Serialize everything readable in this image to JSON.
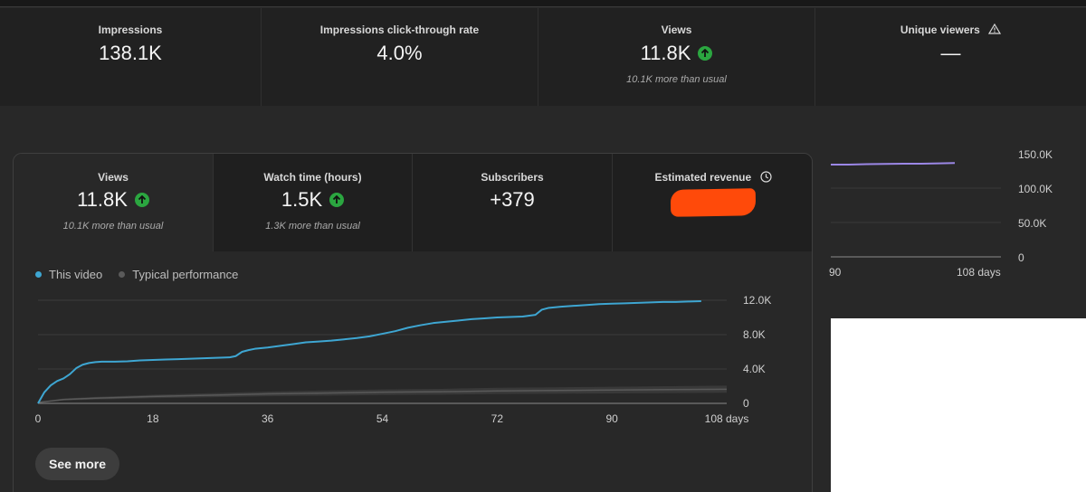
{
  "top_metrics": [
    {
      "label": "Impressions",
      "value": "138.1K"
    },
    {
      "label": "Impressions click-through rate",
      "value": "4.0%"
    },
    {
      "label": "Views",
      "value": "11.8K",
      "trend": "up",
      "sub": "10.1K more than usual"
    },
    {
      "label": "Unique viewers",
      "value": "—",
      "icon": "warning-icon"
    }
  ],
  "background_chart": {
    "y_ticks": [
      "150.0K",
      "100.0K",
      "50.0K",
      "0"
    ],
    "x_ticks": [
      "90",
      "108 days"
    ]
  },
  "card": {
    "tabs": [
      {
        "label": "Views",
        "value": "11.8K",
        "trend": "up",
        "sub": "10.1K more than usual",
        "active": true
      },
      {
        "label": "Watch time (hours)",
        "value": "1.5K",
        "trend": "up",
        "sub": "1.3K more than usual"
      },
      {
        "label": "Subscribers",
        "value": "+379"
      },
      {
        "label": "Estimated revenue",
        "value": "",
        "icon": "clock-icon",
        "redacted": true
      }
    ],
    "legend": [
      {
        "label": "This video",
        "color": "#3ea6d2"
      },
      {
        "label": "Typical performance",
        "color": "#5a5a5a"
      }
    ],
    "see_more_label": "See more"
  },
  "chart_data": {
    "type": "line",
    "x_ticks": [
      "0",
      "18",
      "36",
      "54",
      "72",
      "90",
      "108 days"
    ],
    "y_ticks": [
      "12.0K",
      "8.0K",
      "4.0K",
      "0"
    ],
    "xlim": [
      0,
      108
    ],
    "ylim": [
      0,
      12000
    ],
    "series": [
      {
        "name": "This video",
        "color": "#3ea6d2",
        "points": [
          [
            0,
            0
          ],
          [
            1,
            1300
          ],
          [
            2,
            2100
          ],
          [
            3,
            2600
          ],
          [
            4,
            2900
          ],
          [
            5,
            3400
          ],
          [
            6,
            4100
          ],
          [
            7,
            4500
          ],
          [
            8,
            4700
          ],
          [
            9,
            4800
          ],
          [
            10,
            4850
          ],
          [
            12,
            4850
          ],
          [
            14,
            4900
          ],
          [
            16,
            5000
          ],
          [
            18,
            5050
          ],
          [
            20,
            5100
          ],
          [
            22,
            5150
          ],
          [
            24,
            5200
          ],
          [
            26,
            5250
          ],
          [
            28,
            5300
          ],
          [
            30,
            5350
          ],
          [
            31,
            5500
          ],
          [
            32,
            6000
          ],
          [
            33,
            6200
          ],
          [
            34,
            6350
          ],
          [
            36,
            6500
          ],
          [
            38,
            6700
          ],
          [
            40,
            6900
          ],
          [
            42,
            7100
          ],
          [
            44,
            7200
          ],
          [
            46,
            7300
          ],
          [
            48,
            7450
          ],
          [
            50,
            7600
          ],
          [
            52,
            7800
          ],
          [
            54,
            8100
          ],
          [
            56,
            8400
          ],
          [
            58,
            8800
          ],
          [
            60,
            9100
          ],
          [
            62,
            9350
          ],
          [
            64,
            9500
          ],
          [
            66,
            9650
          ],
          [
            68,
            9800
          ],
          [
            70,
            9900
          ],
          [
            72,
            10000
          ],
          [
            74,
            10050
          ],
          [
            76,
            10100
          ],
          [
            78,
            10300
          ],
          [
            79,
            10900
          ],
          [
            80,
            11100
          ],
          [
            82,
            11250
          ],
          [
            84,
            11350
          ],
          [
            86,
            11450
          ],
          [
            88,
            11550
          ],
          [
            90,
            11600
          ],
          [
            92,
            11650
          ],
          [
            94,
            11700
          ],
          [
            96,
            11750
          ],
          [
            98,
            11800
          ],
          [
            100,
            11800
          ],
          [
            102,
            11850
          ],
          [
            104,
            11900
          ]
        ]
      },
      {
        "name": "Typical performance",
        "color": "#5a5a5a",
        "band": true,
        "points": [
          [
            0,
            100
          ],
          [
            4,
            450
          ],
          [
            9,
            600
          ],
          [
            18,
            800
          ],
          [
            27,
            950
          ],
          [
            36,
            1100
          ],
          [
            45,
            1200
          ],
          [
            54,
            1300
          ],
          [
            63,
            1350
          ],
          [
            72,
            1450
          ],
          [
            81,
            1500
          ],
          [
            90,
            1550
          ],
          [
            99,
            1600
          ],
          [
            108,
            1650
          ]
        ]
      }
    ]
  }
}
